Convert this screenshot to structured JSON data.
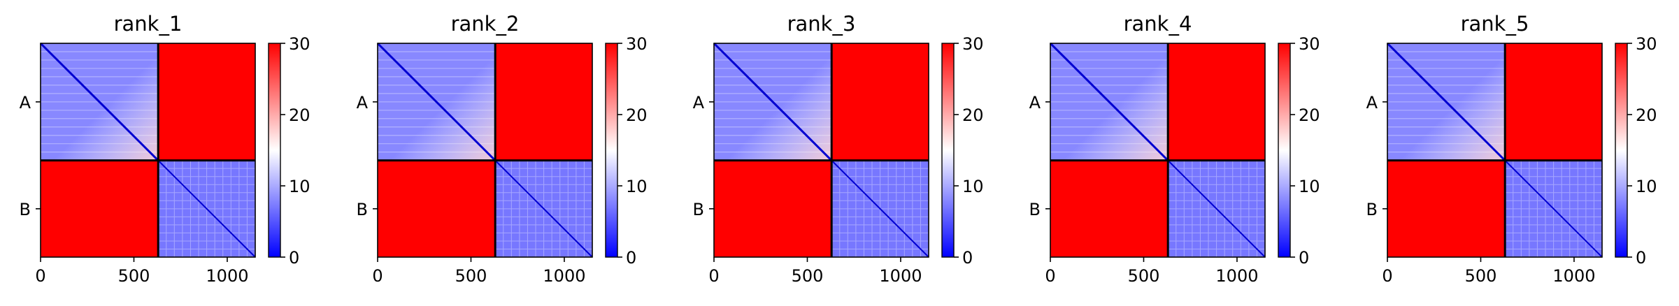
{
  "chart_data": {
    "type": "heatmap",
    "colormap": {
      "name": "bwr",
      "low": "#0000ff",
      "mid": "#ffffff",
      "high": "#ff0000"
    },
    "chain_boundary": 630,
    "total_length": 1150,
    "x_range": [
      0,
      1150
    ],
    "x_ticks": [
      0,
      500,
      1000
    ],
    "x_tick_labels": [
      "0",
      "500",
      "1000"
    ],
    "y_tick_labels": [
      "A",
      "B"
    ],
    "color_range": [
      0,
      30
    ],
    "colorbar_ticks": [
      0,
      10,
      20,
      30
    ],
    "colorbar_tick_labels": [
      "0",
      "10",
      "20",
      "30"
    ],
    "panels": [
      {
        "title": "rank_1",
        "intra_a": 8,
        "intra_b": 7,
        "inter": 30
      },
      {
        "title": "rank_2",
        "intra_a": 8,
        "intra_b": 7,
        "inter": 30
      },
      {
        "title": "rank_3",
        "intra_a": 8,
        "intra_b": 7,
        "inter": 30
      },
      {
        "title": "rank_4",
        "intra_a": 8,
        "intra_b": 7,
        "inter": 30
      },
      {
        "title": "rank_5",
        "intra_a": 8,
        "intra_b": 7,
        "inter": 30
      }
    ]
  }
}
